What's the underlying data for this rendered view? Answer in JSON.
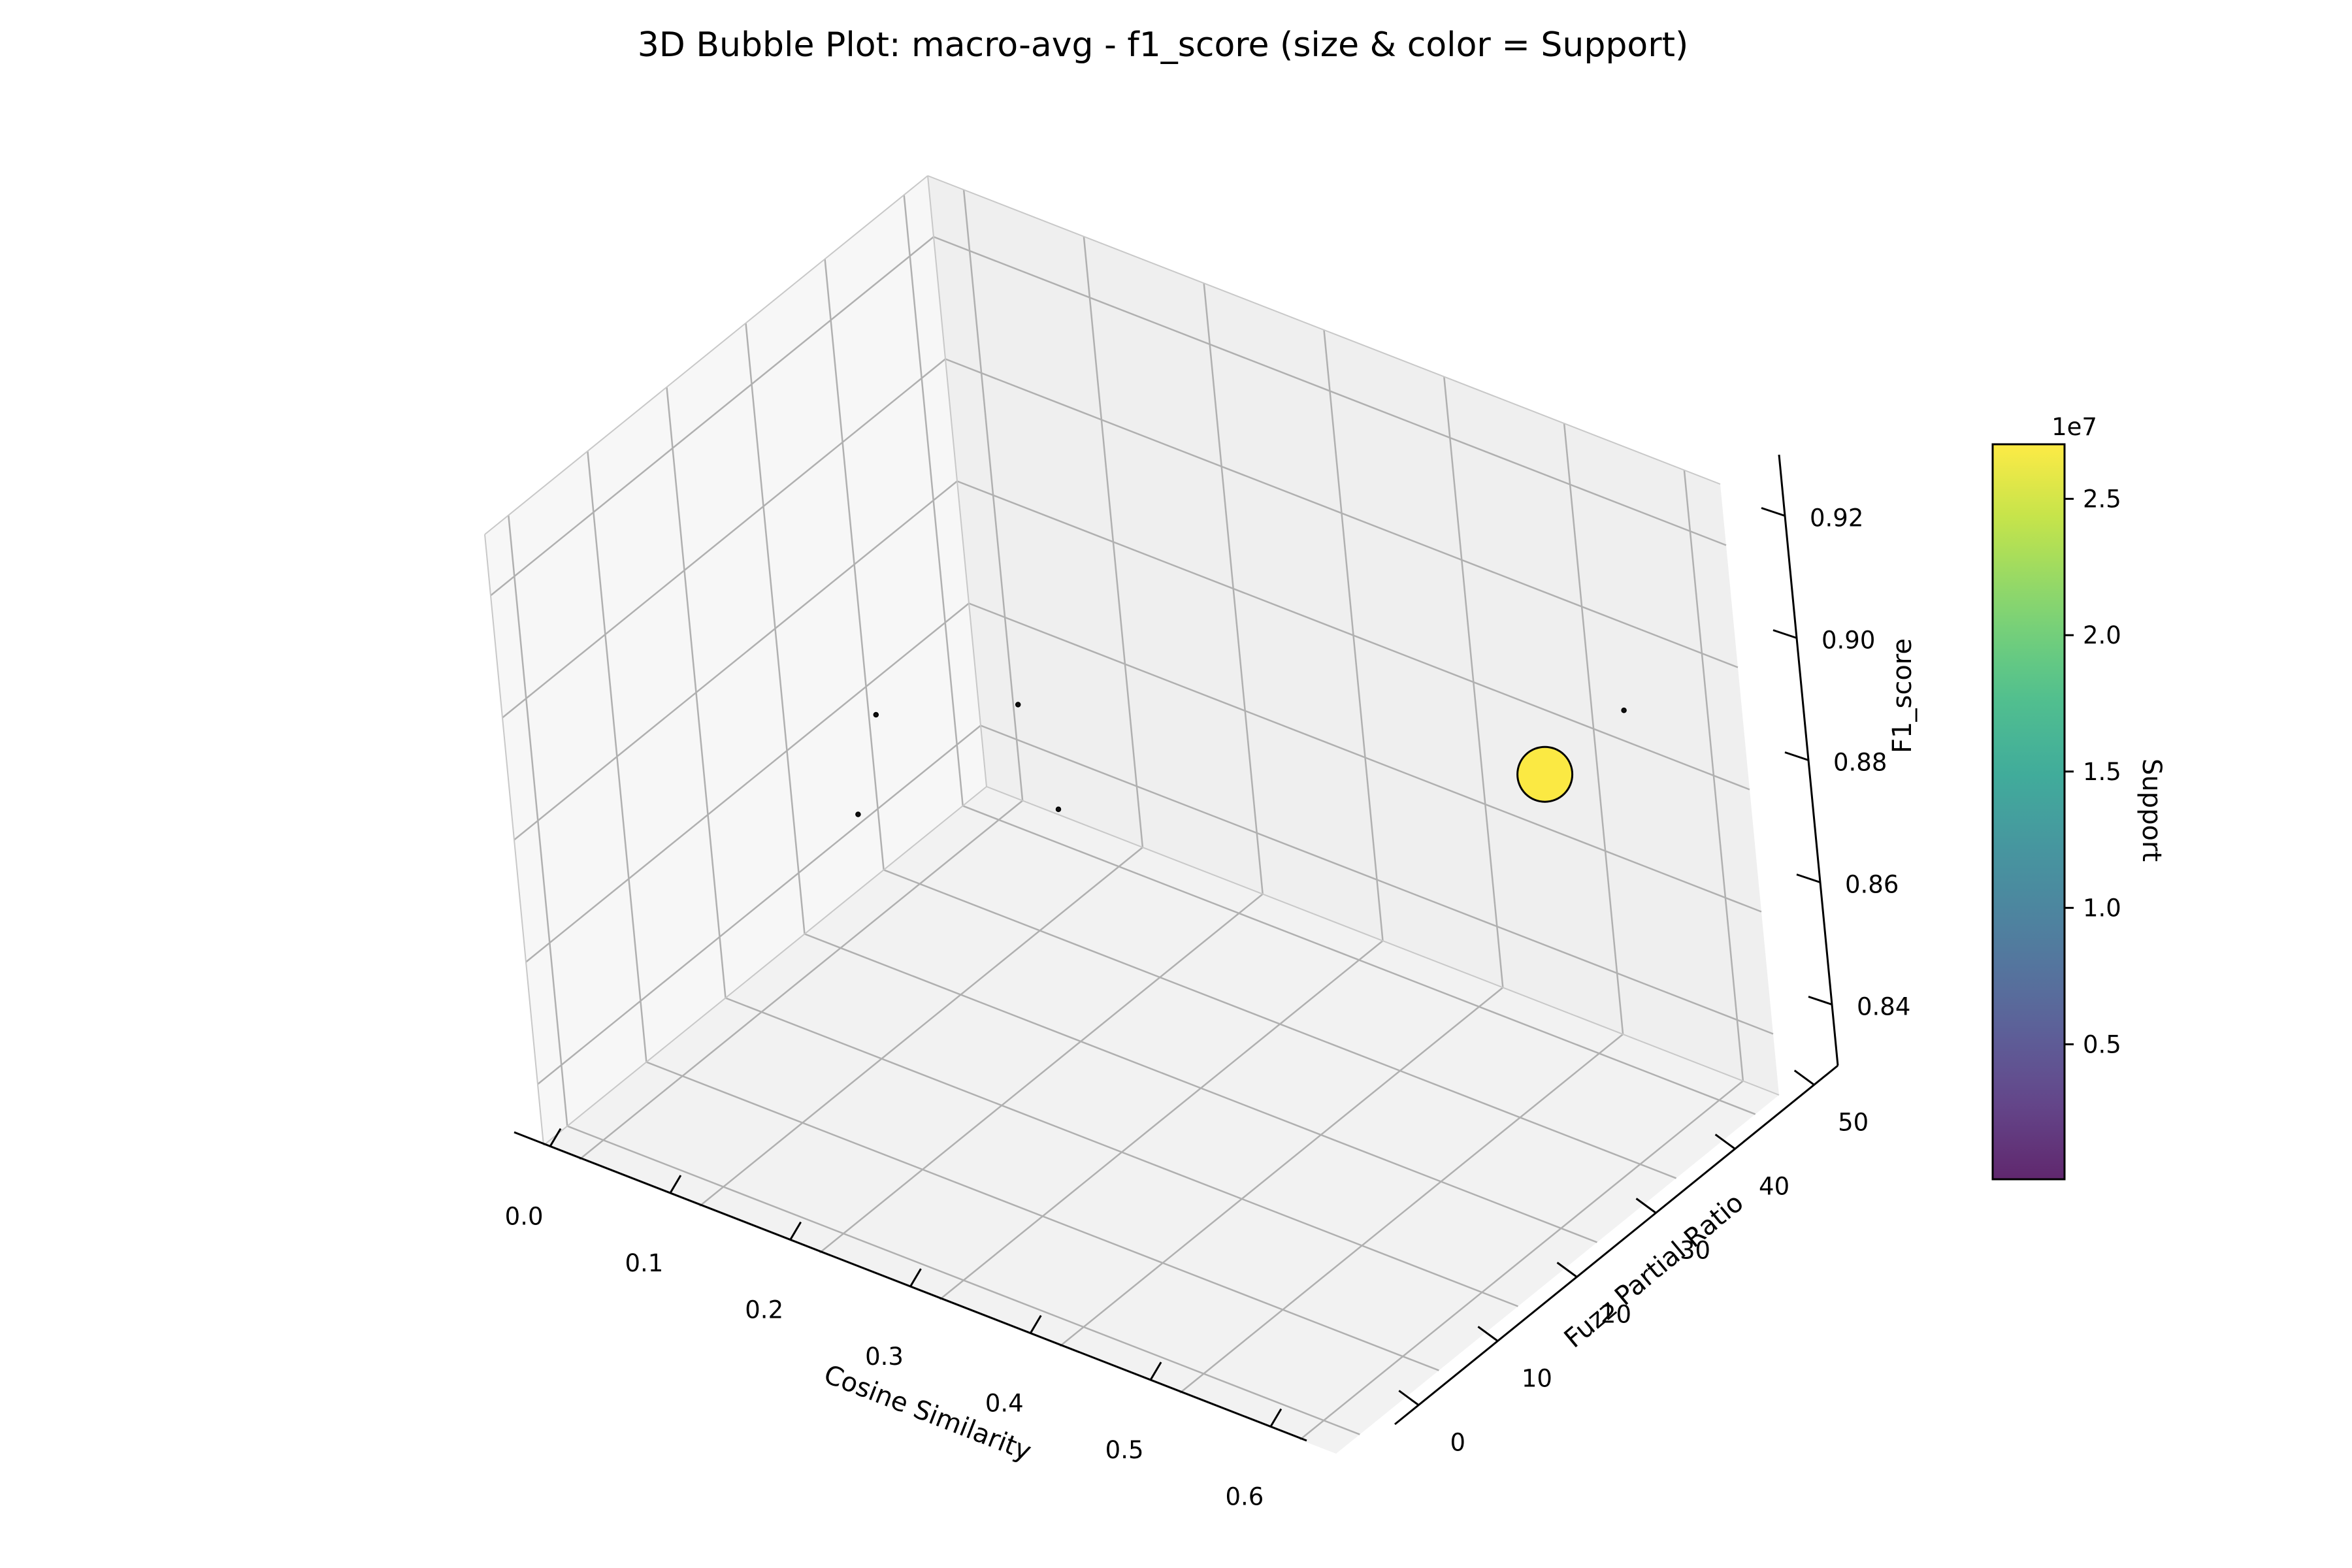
{
  "chart_data": {
    "type": "scatter",
    "title": "3D Bubble Plot: macro-avg - f1_score (size & color = Support)",
    "xlabel": "Cosine Similarity",
    "ylabel": "Fuzz Partial Ratio",
    "zlabel": "F1_score",
    "xlim": [
      -0.03,
      0.63
    ],
    "ylim": [
      -3,
      53
    ],
    "zlim": [
      0.83,
      0.93
    ],
    "x_ticks": [
      "0.0",
      "0.1",
      "0.2",
      "0.3",
      "0.4",
      "0.5",
      "0.6"
    ],
    "y_ticks": [
      "0",
      "10",
      "20",
      "30",
      "40",
      "50"
    ],
    "z_ticks": [
      "0.84",
      "0.86",
      "0.88",
      "0.90",
      "0.92"
    ],
    "grid": true,
    "colorbar": {
      "label": "Support",
      "offset_label": "1e7",
      "colormap": "viridis",
      "min": 0.005,
      "max": 2.7,
      "ticks": [
        "0.5",
        "1.0",
        "1.5",
        "2.0",
        "2.5"
      ]
    },
    "points": [
      {
        "x": 0.05,
        "y": 30,
        "z": 0.872,
        "support": 0.01
      },
      {
        "x": 0.1,
        "y": 40,
        "z": 0.867,
        "support": 0.01
      },
      {
        "x": 0.1,
        "y": 20,
        "z": 0.87,
        "support": 0.01
      },
      {
        "x": 0.2,
        "y": 30,
        "z": 0.868,
        "support": 0.01
      },
      {
        "x": 0.55,
        "y": 40,
        "z": 0.89,
        "support": 2.7
      },
      {
        "x": 0.55,
        "y": 50,
        "z": 0.89,
        "support": 0.01
      }
    ]
  }
}
